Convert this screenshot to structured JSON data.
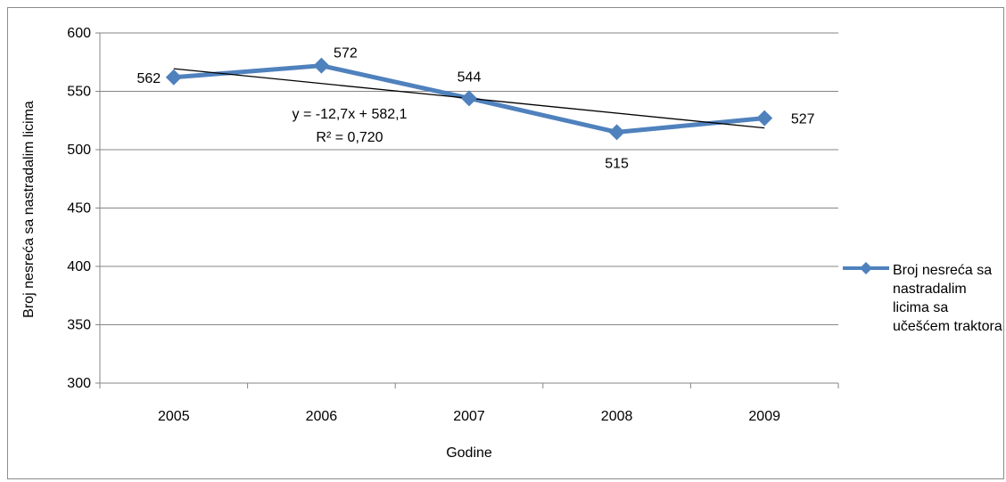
{
  "chart_data": {
    "type": "line",
    "title": "",
    "xlabel": "Godine",
    "ylabel": "Broj nesreća sa nastradalim licima",
    "categories": [
      "2005",
      "2006",
      "2007",
      "2008",
      "2009"
    ],
    "series": [
      {
        "name": "Broj nesreća sa nastradalim licima  sa učešćem traktora",
        "values": [
          562,
          572,
          544,
          515,
          527
        ],
        "data_labels": [
          "562",
          "572",
          "544",
          "515",
          "527"
        ],
        "color": "#4f81bd",
        "marker": "diamond"
      }
    ],
    "trendline": {
      "type": "linear",
      "slope": -12.7,
      "intercept": 582.1,
      "equation": "y = -12,7x + 582,1",
      "r_squared": "R² = 0,720",
      "color": "#000000"
    },
    "ylim": [
      300,
      600
    ],
    "yticks": [
      "300",
      "350",
      "400",
      "450",
      "500",
      "550",
      "600"
    ],
    "grid": true,
    "legend": "right"
  }
}
